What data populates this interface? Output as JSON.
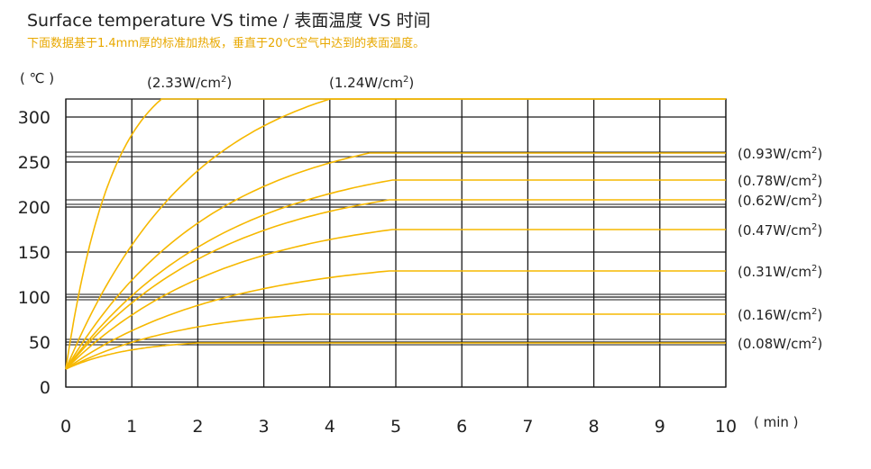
{
  "title": "Surface temperature VS time  /  表面温度 VS 时间",
  "subtitle": "下面数据基于1.4mm厚的标准加热板，垂直于20℃空气中达到的表面温度。",
  "colors": {
    "curve": "#f6b800",
    "grid": "#1a1a1a",
    "text": "#222222",
    "subtitle": "#e8a800"
  },
  "chart_data": {
    "type": "line",
    "ylabel": "( ℃ )",
    "xlabel": "( min )",
    "xlim": [
      0,
      10
    ],
    "ylim": [
      0,
      320
    ],
    "x_ticks": [
      "0",
      "1",
      "2",
      "3",
      "4",
      "5",
      "6",
      "7",
      "8",
      "9",
      "10"
    ],
    "y_ticks": [
      "0",
      "50",
      "100",
      "150",
      "200",
      "250",
      "300"
    ],
    "grid": true,
    "start_temperature": 20,
    "series": [
      {
        "name": "(0.08W/cm2)",
        "label_base": "(0.08W/cm",
        "label_sup": "2",
        "label_tail": ")",
        "plateau": 49,
        "plateau_time": 2.0
      },
      {
        "name": "(0.16W/cm2)",
        "label_base": "(0.16W/cm",
        "label_sup": "2",
        "label_tail": ")",
        "plateau": 81,
        "plateau_time": 3.7
      },
      {
        "name": "(0.31W/cm2)",
        "label_base": "(0.31W/cm",
        "label_sup": "2",
        "label_tail": ")",
        "plateau": 129,
        "plateau_time": 4.9
      },
      {
        "name": "(0.47W/cm2)",
        "label_base": "(0.47W/cm",
        "label_sup": "2",
        "label_tail": ")",
        "plateau": 175,
        "plateau_time": 4.95
      },
      {
        "name": "(0.62W/cm2)",
        "label_base": "(0.62W/cm",
        "label_sup": "2",
        "label_tail": ")",
        "plateau": 208,
        "plateau_time": 4.9
      },
      {
        "name": "(0.78W/cm2)",
        "label_base": "(0.78W/cm",
        "label_sup": "2",
        "label_tail": ")",
        "plateau": 230,
        "plateau_time": 4.95
      },
      {
        "name": "(0.93W/cm2)",
        "label_base": "(0.93W/cm",
        "label_sup": "2",
        "label_tail": ")",
        "plateau": 260,
        "plateau_time": 4.6
      },
      {
        "name": "(1.24W/cm2)",
        "label_base": "(1.24W/cm",
        "label_sup": "2",
        "label_tail": ")",
        "plateau": 320,
        "plateau_time": 4.0
      },
      {
        "name": "(2.33W/cm2)",
        "label_base": "(2.33W/cm",
        "label_sup": "2",
        "label_tail": ")",
        "plateau": 320,
        "plateau_time": 1.45
      }
    ],
    "curve_tangent_temperatures": [
      24,
      84,
      112,
      141,
      168,
      200,
      235,
      271,
      310
    ]
  }
}
